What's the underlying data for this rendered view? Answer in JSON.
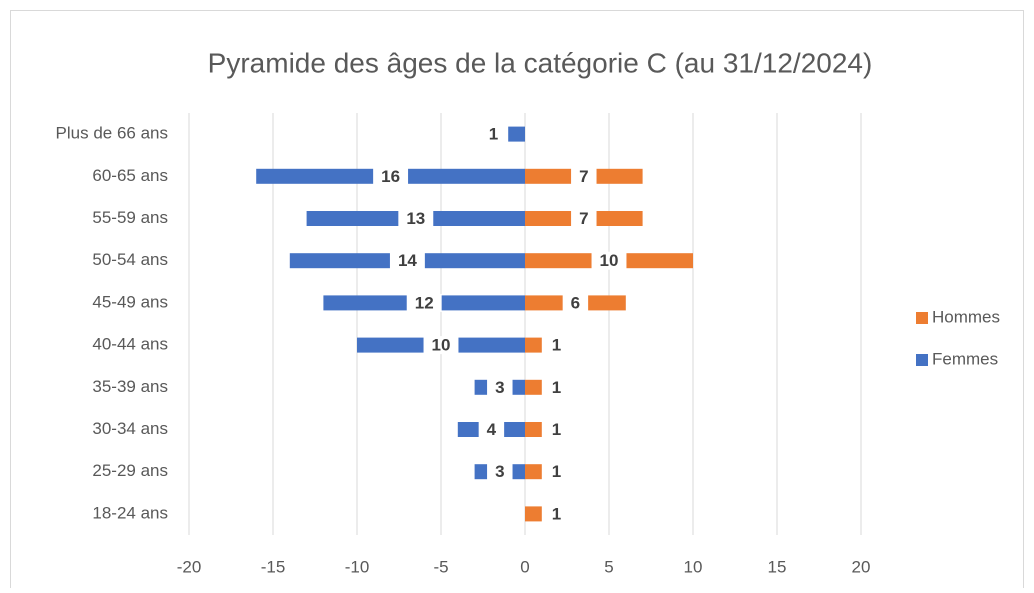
{
  "chart_data": {
    "type": "bar",
    "orientation": "horizontal",
    "title": "Pyramide des âges de la catégorie C (au 31/12/2024)",
    "categories": [
      "18-24 ans",
      "25-29 ans",
      "30-34 ans",
      "35-39 ans",
      "40-44 ans",
      "45-49 ans",
      "50-54 ans",
      "55-59 ans",
      "60-65 ans",
      "Plus de 66 ans"
    ],
    "series": [
      {
        "name": "Hommes",
        "color": "#ed7d31",
        "values": [
          1,
          1,
          1,
          1,
          1,
          6,
          10,
          7,
          7,
          null
        ],
        "value_labels": [
          "1",
          "1",
          "1",
          "1",
          "1",
          "6",
          "10",
          "7",
          "7",
          null
        ]
      },
      {
        "name": "Femmes",
        "color": "#4472c4",
        "values": [
          null,
          -3,
          -4,
          -3,
          -10,
          -12,
          -14,
          -13,
          -16,
          -1
        ],
        "value_labels": [
          null,
          "3",
          "4",
          "3",
          "10",
          "12",
          "14",
          "13",
          "16",
          "1"
        ]
      }
    ],
    "xlim": [
      -20,
      20
    ],
    "xticks": [
      -20,
      -15,
      -10,
      -5,
      0,
      5,
      10,
      15,
      20
    ],
    "grid": true,
    "legend": "right"
  }
}
